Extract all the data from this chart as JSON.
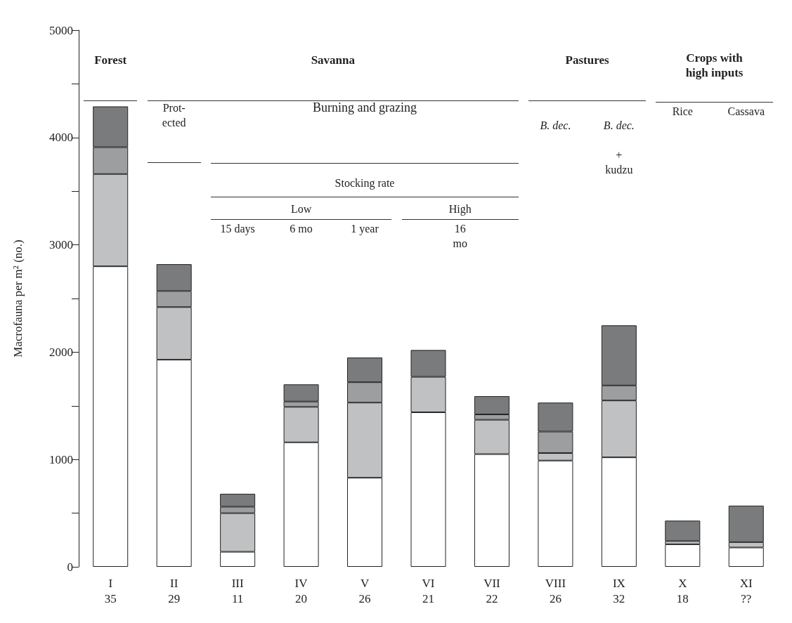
{
  "chart_data": {
    "type": "bar",
    "stacked": true,
    "categories": [
      "I\n35",
      "II\n29",
      "III\n11",
      "IV\n20",
      "V\n26",
      "VI\n21",
      "VII\n22",
      "VIII\n26",
      "IX\n32",
      "X\n18",
      "XI\n??"
    ],
    "series": [
      {
        "color": "#ffffff",
        "values": [
          2800,
          1930,
          140,
          1160,
          830,
          1440,
          1050,
          990,
          1020,
          210,
          180
        ]
      },
      {
        "color": "#c0c1c3",
        "values": [
          860,
          490,
          360,
          330,
          700,
          330,
          320,
          70,
          530,
          30,
          50
        ]
      },
      {
        "color": "#9d9ea0",
        "values": [
          250,
          150,
          60,
          50,
          190,
          null,
          50,
          200,
          140,
          null,
          null
        ]
      },
      {
        "color": "#7a7b7d",
        "values": [
          380,
          250,
          120,
          160,
          230,
          250,
          170,
          270,
          560,
          190,
          340
        ]
      }
    ],
    "ylabel": "Macrofauna per m² (no.)",
    "ylim": [
      0,
      5000
    ],
    "yticks": [
      0,
      {
        "value": 500,
        "label": null
      },
      1000,
      {
        "value": 1500,
        "label": null
      },
      2000,
      {
        "value": 2500,
        "label": null
      },
      3000,
      {
        "value": 3500,
        "label": null
      },
      4000,
      {
        "value": 4500,
        "label": null
      },
      5000
    ],
    "grid": false,
    "annotations": [
      "Forest",
      "Savanna",
      "Pastures",
      "Crops with high inputs",
      "Prot-ected",
      "Burning and grazing",
      "Stocking rate",
      "Low",
      "High",
      "15 days",
      "6 mo",
      "1 year",
      "16 mo",
      "B. dec.",
      "B. dec.",
      "+ kudzu",
      "Rice",
      "Cassava"
    ]
  }
}
